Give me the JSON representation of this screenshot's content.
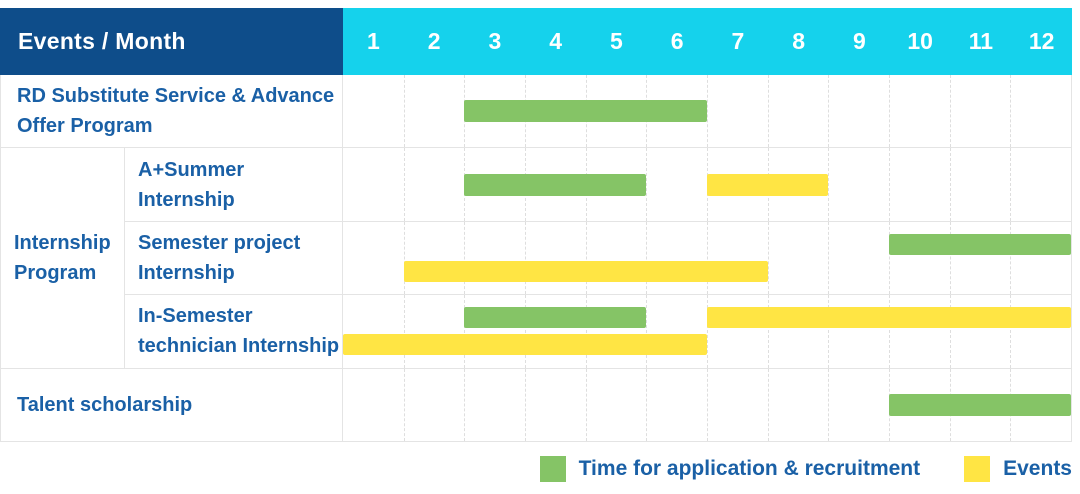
{
  "header": {
    "title": "Events / Month",
    "months": [
      "1",
      "2",
      "3",
      "4",
      "5",
      "6",
      "7",
      "8",
      "9",
      "10",
      "11",
      "12"
    ]
  },
  "colors": {
    "header_bg": "#0E4D8A",
    "months_bg": "#15D2EC",
    "application": "#85C466",
    "events": "#FFE544",
    "label_text": "#1A60A6",
    "grid_line": "#DEDEDE",
    "row_border": "#E4E4E4"
  },
  "legend": {
    "items": [
      {
        "kind": "application",
        "label": "Time for application & recruitment",
        "color": "#85C466"
      },
      {
        "kind": "events",
        "label": "Events",
        "color": "#FFE544"
      }
    ]
  },
  "chart_data": {
    "type": "bar",
    "subtype": "gantt-schedule",
    "title": "Events / Month",
    "x_axis_label": "Month",
    "x_ticks": [
      1,
      2,
      3,
      4,
      5,
      6,
      7,
      8,
      9,
      10,
      11,
      12
    ],
    "x_range": [
      1,
      12
    ],
    "grid": true,
    "legend_position": "bottom-right",
    "legend_entries": [
      {
        "label": "Time for application & recruitment",
        "color": "#85C466"
      },
      {
        "label": "Events",
        "color": "#FFE544"
      }
    ],
    "rows": [
      {
        "label": "RD Substitute Service & Advance Offer Program",
        "group": null,
        "lanes": [
          [
            {
              "kind": "application",
              "start_month": 3,
              "end_month": 6
            }
          ]
        ]
      },
      {
        "label": "A+Summer Internship",
        "group": "Internship Program",
        "lanes": [
          [
            {
              "kind": "application",
              "start_month": 3,
              "end_month": 5
            },
            {
              "kind": "events",
              "start_month": 7,
              "end_month": 8
            }
          ]
        ]
      },
      {
        "label": "Semester project Internship",
        "group": "Internship Program",
        "lanes": [
          [
            {
              "kind": "application",
              "start_month": 10,
              "end_month": 12
            }
          ],
          [
            {
              "kind": "events",
              "start_month": 2,
              "end_month": 7
            }
          ]
        ]
      },
      {
        "label": "In-Semester technician Internship",
        "group": "Internship Program",
        "lanes": [
          [
            {
              "kind": "application",
              "start_month": 3,
              "end_month": 5
            },
            {
              "kind": "events",
              "start_month": 7,
              "end_month": 12
            }
          ],
          [
            {
              "kind": "events",
              "start_month": 1,
              "end_month": 6
            }
          ]
        ]
      },
      {
        "label": "Talent scholarship",
        "group": null,
        "lanes": [
          [
            {
              "kind": "application",
              "start_month": 10,
              "end_month": 12
            }
          ]
        ]
      }
    ]
  }
}
